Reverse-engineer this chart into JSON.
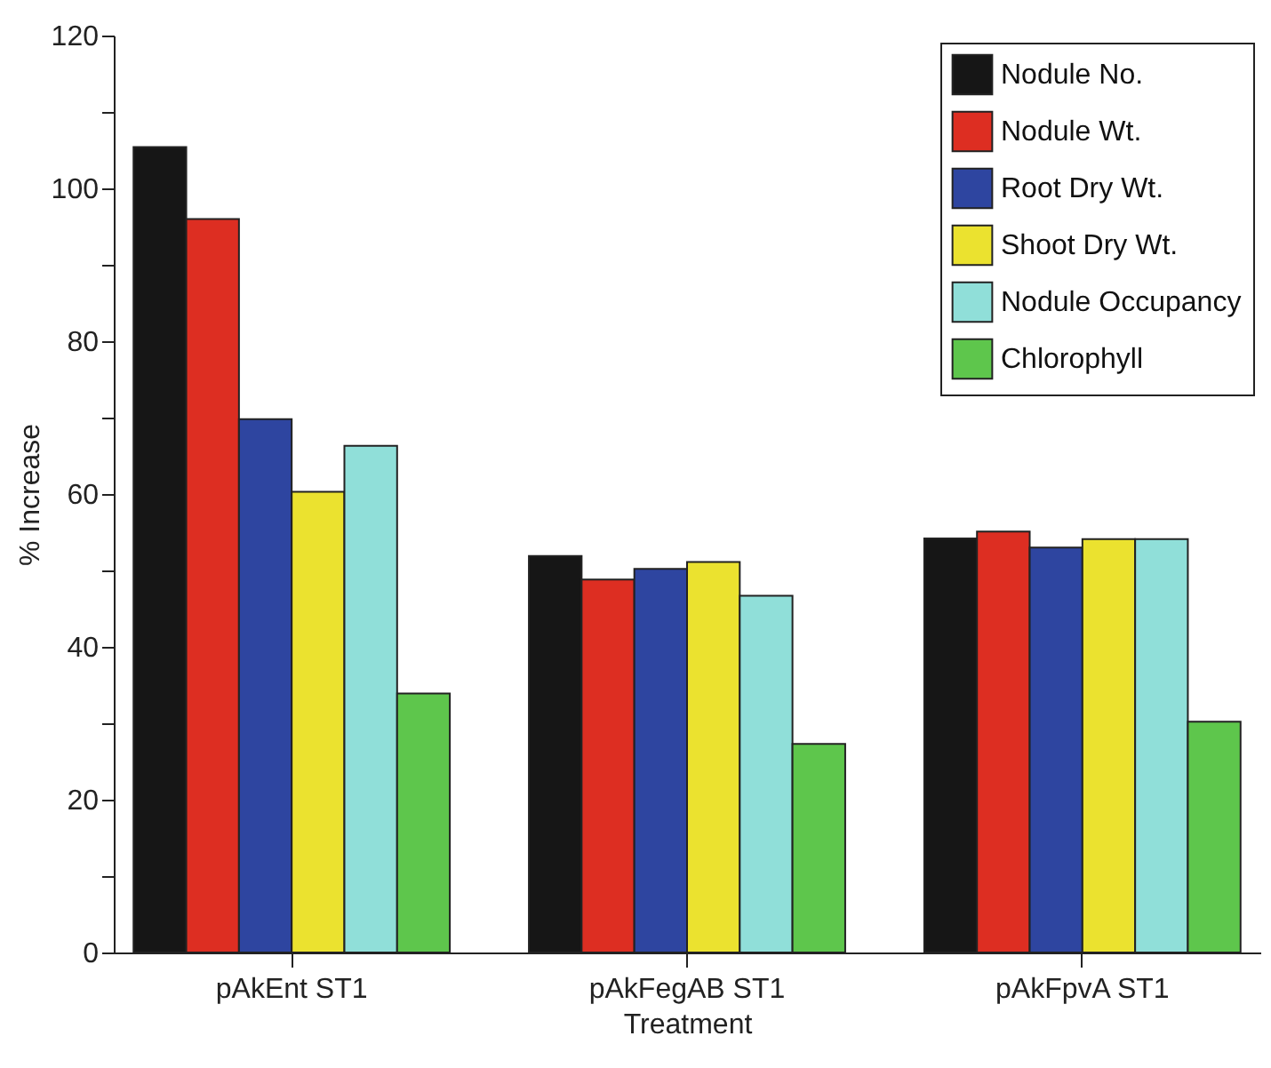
{
  "chart_data": {
    "type": "bar",
    "xlabel": "Treatment",
    "ylabel": "% Increase",
    "categories": [
      "pAkEnt ST1",
      "pAkFegAB ST1",
      "pAkFpvA ST1"
    ],
    "series": [
      {
        "name": "Nodule No.",
        "color": "#161616",
        "values": [
          105.4,
          51.9,
          54.2
        ]
      },
      {
        "name": "Nodule Wt.",
        "color": "#dd2e22",
        "values": [
          96.0,
          48.8,
          55.1
        ]
      },
      {
        "name": "Root Dry Wt.",
        "color": "#2e45a0",
        "values": [
          69.8,
          50.2,
          53.0
        ]
      },
      {
        "name": "Shoot Dry Wt.",
        "color": "#ebe22f",
        "values": [
          60.3,
          51.1,
          54.1
        ]
      },
      {
        "name": "Nodule Occupancy",
        "color": "#90dfd9",
        "values": [
          66.3,
          46.7,
          54.1
        ]
      },
      {
        "name": "Chlorophyll",
        "color": "#5ec64c",
        "values": [
          33.9,
          27.3,
          30.2
        ]
      }
    ],
    "ylim": [
      0,
      120
    ],
    "yticks": [
      0,
      {
        "value": 10,
        "label": null
      },
      20,
      {
        "value": 30,
        "label": null
      },
      40,
      {
        "value": 50,
        "label": null
      },
      60,
      {
        "value": 70,
        "label": null
      },
      80,
      {
        "value": 90,
        "label": null
      },
      100,
      {
        "value": 110,
        "label": null
      },
      120
    ],
    "grid": false,
    "legend": "top right"
  }
}
